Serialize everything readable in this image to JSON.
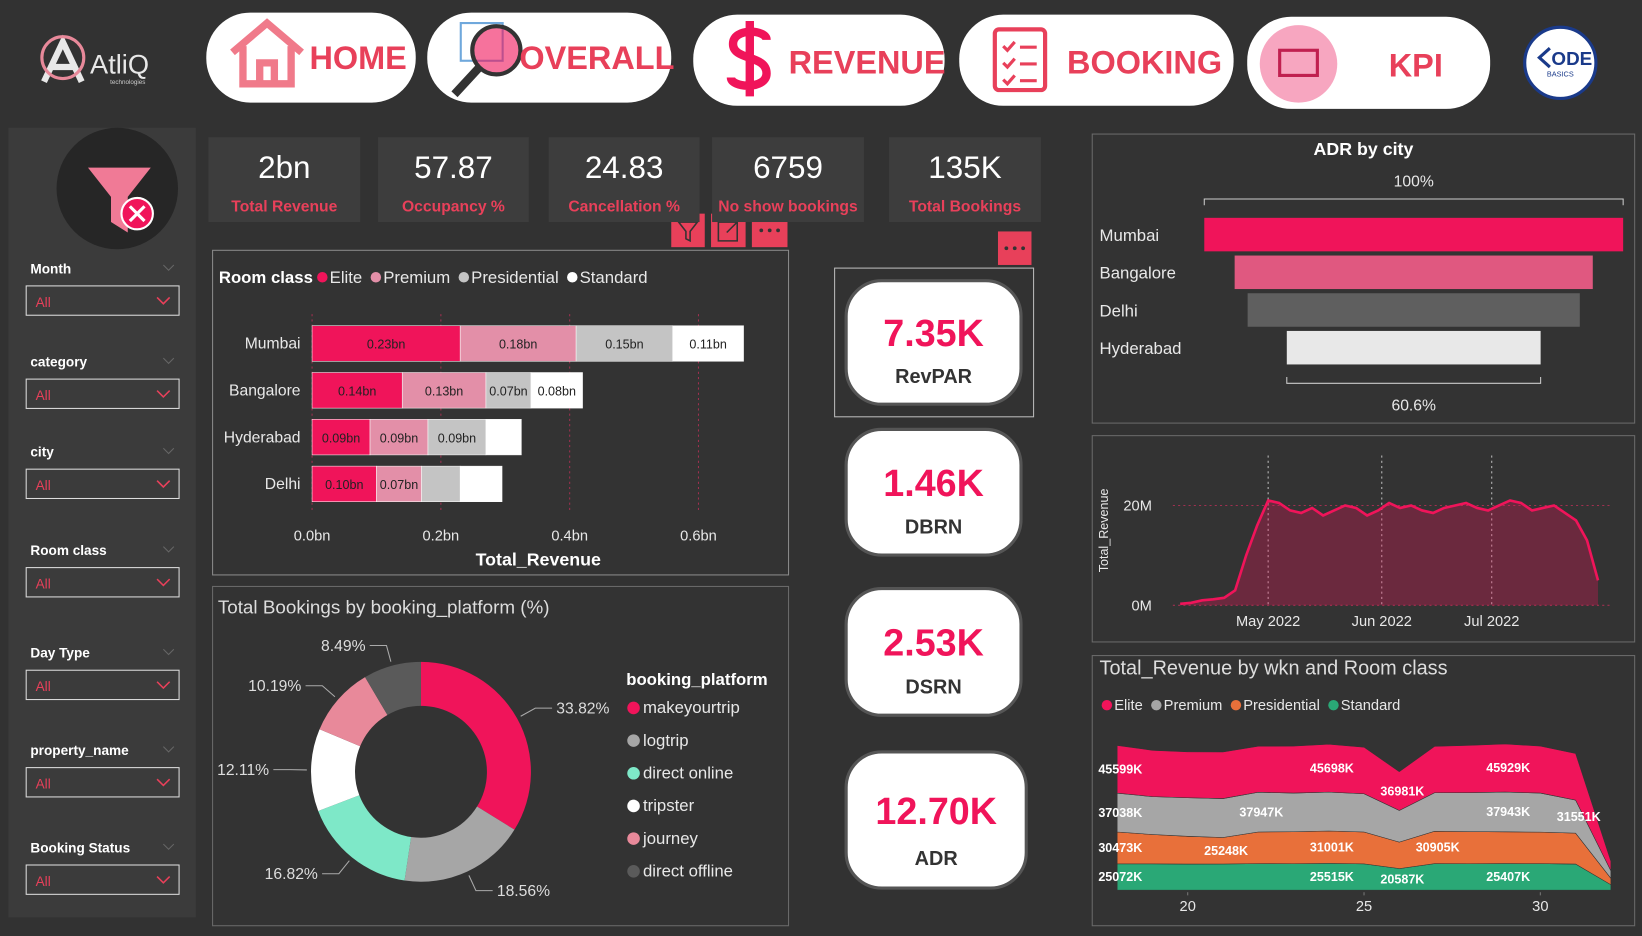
{
  "nav": {
    "logo": "AtliQ",
    "logo_sub": "technologies",
    "buttons": [
      "HOME",
      "OVERALL",
      "REVENUE",
      "BOOKING",
      "KPI"
    ],
    "partner_logo": "ODE",
    "partner_sub": "BASICS"
  },
  "filters": [
    {
      "label": "Month",
      "value": "All"
    },
    {
      "label": "category",
      "value": "All"
    },
    {
      "label": "city",
      "value": "All"
    },
    {
      "label": "Room class",
      "value": "All"
    },
    {
      "label": "Day Type",
      "value": "All"
    },
    {
      "label": "property_name",
      "value": "All"
    },
    {
      "label": "Booking Status",
      "value": "All"
    }
  ],
  "kpis": [
    {
      "value": "2bn",
      "label": "Total Revenue"
    },
    {
      "value": "57.87",
      "label": "Occupancy %"
    },
    {
      "value": "24.83",
      "label": "Cancellation %"
    },
    {
      "value": "6759",
      "label": "No show bookings"
    },
    {
      "value": "135K",
      "label": "Total Bookings"
    }
  ],
  "metric_cards": [
    {
      "value": "7.35K",
      "label": "RevPAR"
    },
    {
      "value": "1.46K",
      "label": "DBRN"
    },
    {
      "value": "2.53K",
      "label": "DSRN"
    },
    {
      "value": "12.70K",
      "label": "ADR"
    }
  ],
  "chart_data": [
    {
      "type": "bar",
      "orientation": "horizontal",
      "stacked": true,
      "legend_title": "Room class",
      "x_label": "Total_Revenue",
      "categories": [
        "Mumbai",
        "Bangalore",
        "Hyderabad",
        "Delhi"
      ],
      "series": [
        {
          "name": "Elite",
          "color": "#f0145a",
          "values": [
            0.23,
            0.14,
            0.09,
            0.1
          ],
          "value_labels": [
            "0.23bn",
            "0.14bn",
            "0.09bn",
            "0.10bn"
          ]
        },
        {
          "name": "Premium",
          "color": "#e38fa8",
          "values": [
            0.18,
            0.13,
            0.09,
            0.07
          ],
          "value_labels": [
            "0.18bn",
            "0.13bn",
            "0.09bn",
            "0.07bn"
          ]
        },
        {
          "name": "Presidential",
          "color": "#c4c4c4",
          "values": [
            0.15,
            0.07,
            0.09,
            0.06
          ],
          "value_labels": [
            "0.15bn",
            "0.07bn",
            "0.09bn",
            null
          ]
        },
        {
          "name": "Standard",
          "color": "#ffffff",
          "values": [
            0.11,
            0.08,
            0.055,
            0.065
          ],
          "value_labels": [
            "0.11bn",
            "0.08bn",
            null,
            null
          ]
        }
      ],
      "xlim": [
        0,
        0.7
      ],
      "xticks": [
        {
          "value": 0,
          "label": "0.0bn"
        },
        {
          "value": 0.2,
          "label": "0.2bn"
        },
        {
          "value": 0.4,
          "label": "0.4bn"
        },
        {
          "value": 0.6,
          "label": "0.6bn"
        }
      ],
      "grid": true
    },
    {
      "type": "pie",
      "donut": true,
      "title": "Total Bookings by booking_platform (%)",
      "legend_title": "booking_platform",
      "categories": [
        "makeyourtrip",
        "logtrip",
        "direct online",
        "tripster",
        "journey",
        "direct offline"
      ],
      "values": [
        33.82,
        18.56,
        16.82,
        12.11,
        10.19,
        8.49
      ],
      "value_labels": [
        "33.82%",
        "18.56%",
        "16.82%",
        "12.11%",
        "10.19%",
        "8.49%"
      ],
      "colors": [
        "#f0145a",
        "#a6a6a6",
        "#7ee8c8",
        "#ffffff",
        "#e8899a",
        "#5a5a5a"
      ]
    },
    {
      "type": "funnel",
      "title": "ADR by city",
      "categories": [
        "Mumbai",
        "Bangalore",
        "Delhi",
        "Hyderabad"
      ],
      "values": [
        100,
        85.5,
        79.3,
        60.6
      ],
      "value_labels": [
        "100%",
        null,
        null,
        "60.6%"
      ],
      "colors": [
        "#f0145a",
        "#e05880",
        "#5f5f5f",
        "#e8e8e8"
      ]
    },
    {
      "type": "area",
      "y_label": "Total_Revenue",
      "color": "#f0145a",
      "x": [
        -24,
        -21,
        -18,
        -15,
        -12,
        -9,
        -6,
        -3,
        0,
        3,
        6,
        9,
        12,
        15,
        18,
        21,
        24,
        27,
        30,
        33,
        36,
        39,
        42,
        45,
        48,
        51,
        54,
        57,
        60,
        63,
        66,
        69,
        72,
        75,
        78,
        81,
        84,
        87,
        90
      ],
      "values": [
        0.3,
        0.5,
        1,
        1.2,
        1.5,
        3,
        10,
        16,
        21,
        20.5,
        19,
        18.5,
        19.5,
        18,
        19,
        20,
        19.5,
        18,
        19,
        20.5,
        19.5,
        20,
        19,
        18.5,
        19.5,
        20,
        20.5,
        19.5,
        19,
        20,
        21,
        20.5,
        19,
        19.5,
        20,
        18.5,
        17,
        13,
        5
      ],
      "xlim": [
        -26,
        94
      ],
      "xticks": [
        {
          "value": 0,
          "label": "May 2022"
        },
        {
          "value": 31,
          "label": "Jun 2022"
        },
        {
          "value": 61,
          "label": "Jul 2022"
        }
      ],
      "ylim": [
        0,
        30
      ],
      "yticks": [
        {
          "value": 0,
          "label": "0M"
        },
        {
          "value": 20,
          "label": "20M"
        }
      ],
      "grid": true
    },
    {
      "type": "area",
      "stacked": true,
      "title": "Total_Revenue by wkn and Room class",
      "x": [
        18,
        19,
        20,
        21,
        22,
        23,
        24,
        25,
        26,
        27,
        28,
        29,
        30,
        31,
        32
      ],
      "series": [
        {
          "name": "Elite",
          "color": "#f0145a",
          "values": [
            45599,
            44200,
            43800,
            44500,
            44000,
            44800,
            45698,
            44500,
            36981,
            44300,
            45100,
            45929,
            44800,
            44500,
            9000
          ],
          "value_labels": [
            "45599K",
            null,
            null,
            null,
            null,
            null,
            "45698K",
            null,
            "36981K",
            null,
            null,
            "45929K",
            null,
            null,
            null
          ]
        },
        {
          "name": "Premium",
          "color": "#a6a6a6",
          "values": [
            37038,
            36200,
            36800,
            37200,
            37947,
            36900,
            37100,
            36500,
            30200,
            36800,
            37200,
            37943,
            37300,
            31551,
            7200
          ],
          "value_labels": [
            "37038K",
            null,
            null,
            null,
            "37947K",
            null,
            null,
            null,
            null,
            null,
            null,
            "37943K",
            null,
            "31551K",
            null
          ]
        },
        {
          "name": "Presidential",
          "color": "#e8703a",
          "values": [
            30473,
            28000,
            26500,
            25248,
            30200,
            30600,
            31001,
            30400,
            25300,
            30905,
            30700,
            30300,
            30100,
            29500,
            6100
          ],
          "value_labels": [
            "30473K",
            null,
            null,
            "25248K",
            null,
            null,
            "31001K",
            null,
            null,
            "30905K",
            null,
            null,
            null,
            null,
            null
          ]
        },
        {
          "name": "Standard",
          "color": "#2aa876",
          "values": [
            25072,
            25100,
            24900,
            25000,
            25300,
            25200,
            25515,
            25100,
            20587,
            25300,
            25200,
            25407,
            25300,
            24900,
            5200
          ],
          "value_labels": [
            "25072K",
            null,
            null,
            null,
            null,
            null,
            "25515K",
            null,
            "20587K",
            null,
            null,
            "25407K",
            null,
            null,
            null
          ]
        }
      ],
      "xlim": [
        17.5,
        32.2
      ],
      "xticks": [
        20,
        25,
        30
      ]
    }
  ]
}
